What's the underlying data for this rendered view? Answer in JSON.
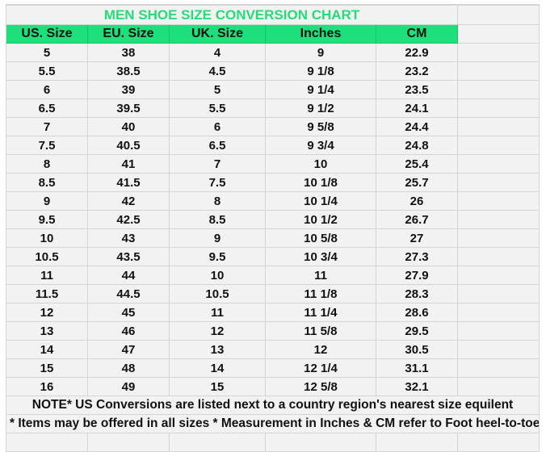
{
  "title": "MEN SHOE SIZE CONVERSION CHART",
  "colors": {
    "accent": "#1de07a",
    "title": "#25dc78"
  },
  "headers": [
    "US. Size",
    "EU. Size",
    "UK. Size",
    "Inches",
    "CM"
  ],
  "rows": [
    [
      "5",
      "38",
      "4",
      "9",
      "22.9"
    ],
    [
      "5.5",
      "38.5",
      "4.5",
      "9 1/8",
      "23.2"
    ],
    [
      "6",
      "39",
      "5",
      "9 1/4",
      "23.5"
    ],
    [
      "6.5",
      "39.5",
      "5.5",
      "9 1/2",
      "24.1"
    ],
    [
      "7",
      "40",
      "6",
      "9 5/8",
      "24.4"
    ],
    [
      "7.5",
      "40.5",
      "6.5",
      "9 3/4",
      "24.8"
    ],
    [
      "8",
      "41",
      "7",
      "10",
      "25.4"
    ],
    [
      "8.5",
      "41.5",
      "7.5",
      "10 1/8",
      "25.7"
    ],
    [
      "9",
      "42",
      "8",
      "10 1/4",
      "26"
    ],
    [
      "9.5",
      "42.5",
      "8.5",
      "10 1/2",
      "26.7"
    ],
    [
      "10",
      "43",
      "9",
      "10 5/8",
      "27"
    ],
    [
      "10.5",
      "43.5",
      "9.5",
      "10 3/4",
      "27.3"
    ],
    [
      "11",
      "44",
      "10",
      "11",
      "27.9"
    ],
    [
      "11.5",
      "44.5",
      "10.5",
      "11 1/8",
      "28.3"
    ],
    [
      "12",
      "45",
      "11",
      "11 1/4",
      "28.6"
    ],
    [
      "13",
      "46",
      "12",
      "11 5/8",
      "29.5"
    ],
    [
      "14",
      "47",
      "13",
      "12",
      "30.5"
    ],
    [
      "15",
      "48",
      "14",
      "12 1/4",
      "31.1"
    ],
    [
      "16",
      "49",
      "15",
      "12 5/8",
      "32.1"
    ]
  ],
  "notes": [
    "NOTE* US Conversions are listed next to a country region's nearest size equilent",
    "* Items may be offered in all sizes * Measurement in Inches & CM refer to Foot heel-to-toe"
  ]
}
